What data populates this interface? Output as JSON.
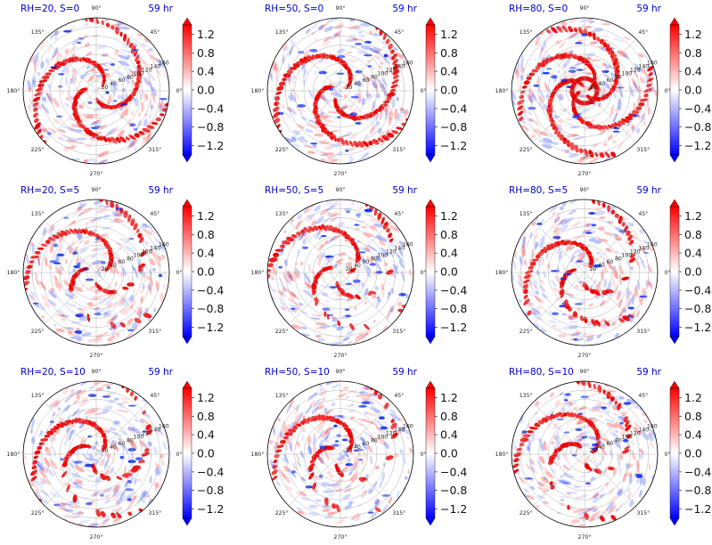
{
  "figure": {
    "colorbar": {
      "ticks": [
        "1.2",
        "0.8",
        "0.4",
        "0.0",
        "−0.4",
        "−0.8",
        "−1.2"
      ],
      "colors": {
        "max": "#ff0000",
        "mid": "#ffffff",
        "min": "#0000ff"
      }
    },
    "polar": {
      "angle_labels": [
        "0°",
        "45°",
        "90°",
        "135°",
        "180°",
        "225°",
        "270°",
        "315°"
      ],
      "radius_labels": [
        "20",
        "40",
        "60",
        "80",
        "100",
        "120",
        "140",
        "160"
      ]
    },
    "title_color": "#0000cc"
  },
  "chart_data": [
    {
      "type": "heatmap",
      "projection": "polar",
      "title": "RH=20, S=0",
      "time_label": "59 hr",
      "colorbar_range": [
        -1.4,
        1.4
      ]
    },
    {
      "type": "heatmap",
      "projection": "polar",
      "title": "RH=50, S=0",
      "time_label": "59 hr",
      "colorbar_range": [
        -1.4,
        1.4
      ]
    },
    {
      "type": "heatmap",
      "projection": "polar",
      "title": "RH=80, S=0",
      "time_label": "59 hr",
      "colorbar_range": [
        -1.4,
        1.4
      ]
    },
    {
      "type": "heatmap",
      "projection": "polar",
      "title": "RH=20, S=5",
      "time_label": "59 hr",
      "colorbar_range": [
        -1.4,
        1.4
      ]
    },
    {
      "type": "heatmap",
      "projection": "polar",
      "title": "RH=50, S=5",
      "time_label": "59 hr",
      "colorbar_range": [
        -1.4,
        1.4
      ]
    },
    {
      "type": "heatmap",
      "projection": "polar",
      "title": "RH=80, S=5",
      "time_label": "59 hr",
      "colorbar_range": [
        -1.4,
        1.4
      ]
    },
    {
      "type": "heatmap",
      "projection": "polar",
      "title": "RH=20, S=10",
      "time_label": "59 hr",
      "colorbar_range": [
        -1.4,
        1.4
      ]
    },
    {
      "type": "heatmap",
      "projection": "polar",
      "title": "RH=50, S=10",
      "time_label": "59 hr",
      "colorbar_range": [
        -1.4,
        1.4
      ]
    },
    {
      "type": "heatmap",
      "projection": "polar",
      "title": "RH=80, S=10",
      "time_label": "59 hr",
      "colorbar_range": [
        -1.4,
        1.4
      ]
    }
  ]
}
